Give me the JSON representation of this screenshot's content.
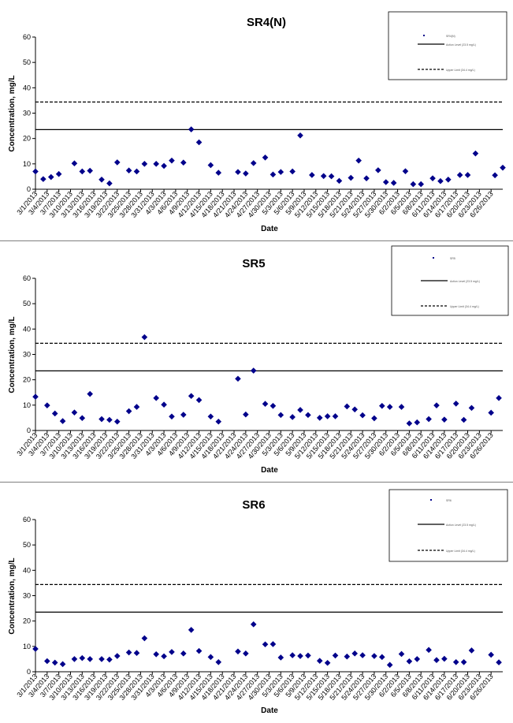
{
  "chart_data": [
    {
      "type": "scatter",
      "title": "SR4(N)",
      "xlabel": "Date",
      "ylabel": "Concentration, mg/L",
      "ylim": [
        0,
        60
      ],
      "yticks": [
        0,
        10,
        20,
        30,
        40,
        50,
        60
      ],
      "x_tick_labels": [
        "3/1/2013",
        "3/4/2013",
        "3/7/2013",
        "3/10/2013",
        "3/13/2013",
        "3/16/2013",
        "3/19/2013",
        "3/22/2013",
        "3/25/2013",
        "3/28/2013",
        "3/31/2013",
        "4/3/2013",
        "4/6/2013",
        "4/9/2013",
        "4/12/2013",
        "4/15/2013",
        "4/18/2013",
        "4/21/2013",
        "4/24/2013",
        "4/27/2013",
        "4/30/2013",
        "5/3/2013",
        "5/6/2013",
        "5/9/2013",
        "5/12/2013",
        "5/15/2013",
        "5/18/2013",
        "5/21/2013",
        "5/24/2013",
        "5/27/2013",
        "5/30/2013",
        "6/2/2013",
        "6/5/2013",
        "6/8/2013",
        "6/11/2013",
        "6/14/2013",
        "6/17/2013",
        "6/20/2013",
        "6/23/2013",
        "6/26/2013"
      ],
      "legend": [
        "SR4(N)",
        "Action Level (23.5 mg/L)",
        "Upper Limit (34.4 mg/L)"
      ],
      "legend_position": "top-right",
      "reference_lines": [
        {
          "name": "Action Level",
          "value": 23.5,
          "style": "solid"
        },
        {
          "name": "Upper Limit",
          "value": 34.4,
          "style": "dashed"
        }
      ],
      "series": [
        {
          "name": "SR4(N)",
          "points": [
            [
              "3/1/2013",
              7
            ],
            [
              "3/3/2013",
              4
            ],
            [
              "3/5/2013",
              4.8
            ],
            [
              "3/7/2013",
              6
            ],
            [
              "3/11/2013",
              10.2
            ],
            [
              "3/13/2013",
              7
            ],
            [
              "3/15/2013",
              7.3
            ],
            [
              "3/18/2013",
              3.8
            ],
            [
              "3/20/2013",
              2.3
            ],
            [
              "3/22/2013",
              10.6
            ],
            [
              "3/25/2013",
              7.4
            ],
            [
              "3/27/2013",
              7
            ],
            [
              "3/29/2013",
              10
            ],
            [
              "4/1/2013",
              10
            ],
            [
              "4/3/2013",
              9.2
            ],
            [
              "4/5/2013",
              11.3
            ],
            [
              "4/8/2013",
              10.5
            ],
            [
              "4/10/2013",
              23.6
            ],
            [
              "4/12/2013",
              18.5
            ],
            [
              "4/15/2013",
              9.5
            ],
            [
              "4/17/2013",
              6.5
            ],
            [
              "4/22/2013",
              6.8
            ],
            [
              "4/24/2013",
              6.2
            ],
            [
              "4/26/2013",
              10.3
            ],
            [
              "4/29/2013",
              12.5
            ],
            [
              "5/1/2013",
              5.8
            ],
            [
              "5/3/2013",
              6.8
            ],
            [
              "5/6/2013",
              7
            ],
            [
              "5/8/2013",
              21.2
            ],
            [
              "5/11/2013",
              5.6
            ],
            [
              "5/14/2013",
              5.2
            ],
            [
              "5/16/2013",
              5.1
            ],
            [
              "5/18/2013",
              3.3
            ],
            [
              "5/21/2013",
              4.5
            ],
            [
              "5/23/2013",
              11.3
            ],
            [
              "5/25/2013",
              4.3
            ],
            [
              "5/28/2013",
              7.5
            ],
            [
              "5/30/2013",
              2.8
            ],
            [
              "6/1/2013",
              2.5
            ],
            [
              "6/4/2013",
              7.1
            ],
            [
              "6/6/2013",
              2
            ],
            [
              "6/8/2013",
              2
            ],
            [
              "6/11/2013",
              4.3
            ],
            [
              "6/13/2013",
              3.2
            ],
            [
              "6/15/2013",
              3.8
            ],
            [
              "6/18/2013",
              5.6
            ],
            [
              "6/20/2013",
              5.6
            ],
            [
              "6/22/2013",
              14.1
            ],
            [
              "6/27/2013",
              5.5
            ],
            [
              "6/29/2013",
              8.5
            ]
          ]
        }
      ]
    },
    {
      "type": "scatter",
      "title": "SR5",
      "xlabel": "Date",
      "ylabel": "Concentration, mg/L",
      "ylim": [
        0,
        60
      ],
      "yticks": [
        0,
        10,
        20,
        30,
        40,
        50,
        60
      ],
      "x_tick_labels": [
        "3/1/2013",
        "3/4/2013",
        "3/7/2013",
        "3/10/2013",
        "3/13/2013",
        "3/16/2013",
        "3/19/2013",
        "3/22/2013",
        "3/25/2013",
        "3/28/2013",
        "3/31/2013",
        "4/3/2013",
        "4/6/2013",
        "4/9/2013",
        "4/12/2013",
        "4/15/2013",
        "4/18/2013",
        "4/21/2013",
        "4/24/2013",
        "4/27/2013",
        "4/30/2013",
        "5/3/2013",
        "5/6/2013",
        "5/9/2013",
        "5/12/2013",
        "5/15/2013",
        "5/18/2013",
        "5/21/2013",
        "5/24/2013",
        "5/27/2013",
        "5/30/2013",
        "6/2/2013",
        "6/5/2013",
        "6/8/2013",
        "6/11/2013",
        "6/14/2013",
        "6/17/2013",
        "6/20/2013",
        "6/23/2013",
        "6/26/2013"
      ],
      "legend": [
        "SR5",
        "Action Level (23.5 mg/L)",
        "Upper Limit (34.4 mg/L)"
      ],
      "legend_position": "top-right",
      "reference_lines": [
        {
          "name": "Action Level",
          "value": 23.5,
          "style": "solid"
        },
        {
          "name": "Upper Limit",
          "value": 34.4,
          "style": "dashed"
        }
      ],
      "series": [
        {
          "name": "SR5",
          "points": [
            [
              "3/1/2013",
              13.3
            ],
            [
              "3/4/2013",
              9.9
            ],
            [
              "3/6/2013",
              6.7
            ],
            [
              "3/8/2013",
              3.7
            ],
            [
              "3/11/2013",
              7.1
            ],
            [
              "3/13/2013",
              4.9
            ],
            [
              "3/15/2013",
              14.4
            ],
            [
              "3/18/2013",
              4.5
            ],
            [
              "3/20/2013",
              4.2
            ],
            [
              "3/22/2013",
              3.5
            ],
            [
              "3/25/2013",
              7.6
            ],
            [
              "3/27/2013",
              9.3
            ],
            [
              "3/29/2013",
              36.8
            ],
            [
              "4/1/2013",
              12.8
            ],
            [
              "4/3/2013",
              10.2
            ],
            [
              "4/5/2013",
              5.5
            ],
            [
              "4/8/2013",
              6.2
            ],
            [
              "4/10/2013",
              13.6
            ],
            [
              "4/12/2013",
              12
            ],
            [
              "4/15/2013",
              5.5
            ],
            [
              "4/17/2013",
              3.5
            ],
            [
              "4/22/2013",
              20.4
            ],
            [
              "4/24/2013",
              6.3
            ],
            [
              "4/26/2013",
              23.6
            ],
            [
              "4/29/2013",
              10.5
            ],
            [
              "5/1/2013",
              9.7
            ],
            [
              "5/3/2013",
              6.1
            ],
            [
              "5/6/2013",
              5.3
            ],
            [
              "5/8/2013",
              8.1
            ],
            [
              "5/10/2013",
              6.1
            ],
            [
              "5/13/2013",
              5
            ],
            [
              "5/15/2013",
              5.6
            ],
            [
              "5/17/2013",
              5.6
            ],
            [
              "5/20/2013",
              9.5
            ],
            [
              "5/22/2013",
              8.3
            ],
            [
              "5/24/2013",
              6
            ],
            [
              "5/27/2013",
              4.8
            ],
            [
              "5/29/2013",
              9.7
            ],
            [
              "5/31/2013",
              9.3
            ],
            [
              "6/3/2013",
              9.3
            ],
            [
              "6/5/2013",
              2.8
            ],
            [
              "6/7/2013",
              3.2
            ],
            [
              "6/10/2013",
              4.5
            ],
            [
              "6/12/2013",
              9.9
            ],
            [
              "6/14/2013",
              4.3
            ],
            [
              "6/17/2013",
              10.6
            ],
            [
              "6/19/2013",
              4.2
            ],
            [
              "6/21/2013",
              8.9
            ],
            [
              "6/26/2013",
              7
            ],
            [
              "6/28/2013",
              12.8
            ]
          ]
        }
      ]
    },
    {
      "type": "scatter",
      "title": "SR6",
      "xlabel": "Date",
      "ylabel": "Concentration, mg/L",
      "ylim": [
        0,
        60
      ],
      "yticks": [
        0,
        10,
        20,
        30,
        40,
        50,
        60
      ],
      "x_tick_labels": [
        "3/1/2013",
        "3/4/2013",
        "3/7/2013",
        "3/10/2013",
        "3/13/2013",
        "3/16/2013",
        "3/19/2013",
        "3/22/2013",
        "3/25/2013",
        "3/28/2013",
        "3/31/2013",
        "4/3/2013",
        "4/6/2013",
        "4/9/2013",
        "4/12/2013",
        "4/15/2013",
        "4/18/2013",
        "4/21/2013",
        "4/24/2013",
        "4/27/2013",
        "4/30/2013",
        "5/3/2013",
        "5/6/2013",
        "5/9/2013",
        "5/12/2013",
        "5/15/2013",
        "5/18/2013",
        "5/21/2013",
        "5/24/2013",
        "5/27/2013",
        "5/30/2013",
        "6/2/2013",
        "6/5/2013",
        "6/8/2013",
        "6/11/2013",
        "6/14/2013",
        "6/17/2013",
        "6/20/2013",
        "6/23/2013",
        "6/26/2013"
      ],
      "legend": [
        "SR6",
        "Action Level (23.5 mg/L)",
        "Upper Limit (34.4 mg/L)"
      ],
      "legend_position": "top-right",
      "reference_lines": [
        {
          "name": "Action Level",
          "value": 23.5,
          "style": "solid"
        },
        {
          "name": "Upper Limit",
          "value": 34.4,
          "style": "dashed"
        }
      ],
      "series": [
        {
          "name": "SR6",
          "points": [
            [
              "3/1/2013",
              9
            ],
            [
              "3/4/2013",
              4.2
            ],
            [
              "3/6/2013",
              3.6
            ],
            [
              "3/8/2013",
              3
            ],
            [
              "3/11/2013",
              5
            ],
            [
              "3/13/2013",
              5.4
            ],
            [
              "3/15/2013",
              5
            ],
            [
              "3/18/2013",
              5
            ],
            [
              "3/20/2013",
              4.8
            ],
            [
              "3/22/2013",
              6.2
            ],
            [
              "3/25/2013",
              7.6
            ],
            [
              "3/27/2013",
              7.4
            ],
            [
              "3/29/2013",
              13.2
            ],
            [
              "4/1/2013",
              6.9
            ],
            [
              "4/3/2013",
              6.1
            ],
            [
              "4/5/2013",
              7.8
            ],
            [
              "4/8/2013",
              7.2
            ],
            [
              "4/10/2013",
              16.5
            ],
            [
              "4/12/2013",
              8.2
            ],
            [
              "4/15/2013",
              5.8
            ],
            [
              "4/17/2013",
              3.8
            ],
            [
              "4/22/2013",
              8
            ],
            [
              "4/24/2013",
              7.2
            ],
            [
              "4/26/2013",
              18.7
            ],
            [
              "4/29/2013",
              10.8
            ],
            [
              "5/1/2013",
              10.9
            ],
            [
              "5/3/2013",
              5.6
            ],
            [
              "5/6/2013",
              6.5
            ],
            [
              "5/8/2013",
              6.2
            ],
            [
              "5/10/2013",
              6.4
            ],
            [
              "5/13/2013",
              4.3
            ],
            [
              "5/15/2013",
              3.5
            ],
            [
              "5/17/2013",
              6.4
            ],
            [
              "5/20/2013",
              6
            ],
            [
              "5/22/2013",
              7.2
            ],
            [
              "5/24/2013",
              6.5
            ],
            [
              "5/27/2013",
              6.2
            ],
            [
              "5/29/2013",
              5.8
            ],
            [
              "5/31/2013",
              2.7
            ],
            [
              "6/3/2013",
              7
            ],
            [
              "6/5/2013",
              4.1
            ],
            [
              "6/7/2013",
              5
            ],
            [
              "6/10/2013",
              8.6
            ],
            [
              "6/12/2013",
              4.6
            ],
            [
              "6/14/2013",
              5.1
            ],
            [
              "6/17/2013",
              3.8
            ],
            [
              "6/19/2013",
              3.8
            ],
            [
              "6/21/2013",
              8.4
            ],
            [
              "6/26/2013",
              6.7
            ],
            [
              "6/28/2013",
              3.7
            ]
          ]
        }
      ]
    }
  ],
  "colors": {
    "marker": "#00008b",
    "line": "#000000",
    "background": "#ffffff",
    "border": "#7f7f7f"
  }
}
